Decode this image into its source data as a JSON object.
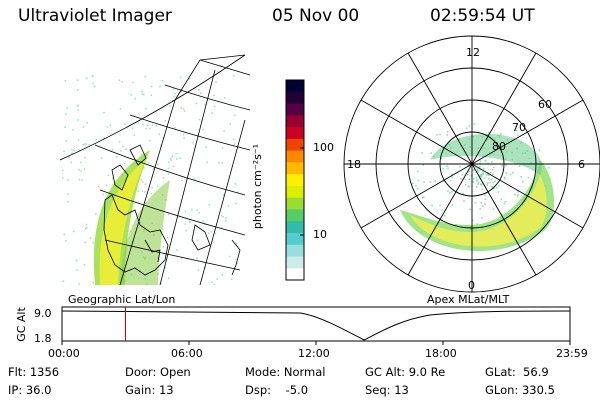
{
  "header": {
    "title": "Ultraviolet Imager",
    "date": "05 Nov 00",
    "time": "02:59:54 UT"
  },
  "left_panel": {
    "caption": "Geographic Lat/Lon"
  },
  "right_panel": {
    "caption": "Apex MLat/MLT",
    "mlt_labels": {
      "top": "12",
      "left": "18",
      "right": "6",
      "bottom": "0"
    },
    "lat_labels": [
      "60",
      "70",
      "80"
    ]
  },
  "colorbar": {
    "unit_label": "photon cm⁻²s⁻¹",
    "tick_high": "100",
    "tick_low": "10",
    "colors": [
      "#000033",
      "#220033",
      "#550044",
      "#990033",
      "#cc0022",
      "#ee4400",
      "#ff8800",
      "#ffbb00",
      "#ffee00",
      "#ddee00",
      "#99dd33",
      "#55cc66",
      "#33bbaa",
      "#55cccc",
      "#99dddd",
      "#ccecec",
      "#ffffff"
    ]
  },
  "timeline": {
    "axis_label": "GC Alt",
    "y_top": "9.0",
    "y_bottom": "1.8",
    "ticks": [
      "00:00",
      "06:00",
      "12:00",
      "18:00",
      "23:59"
    ],
    "marker_time_hours": 3.0
  },
  "info": {
    "flt": "Flt: 1356",
    "ip": "IP: 36.0",
    "door": "Door: Open",
    "gain": "Gain: 13",
    "mode": "Mode: Normal",
    "dsp": "Dsp:    -5.0",
    "gcalt": "GC Alt: 9.0 Re",
    "seq": "Seq: 13",
    "glat": "GLat:  56.9",
    "glon": "GLon: 330.5"
  }
}
